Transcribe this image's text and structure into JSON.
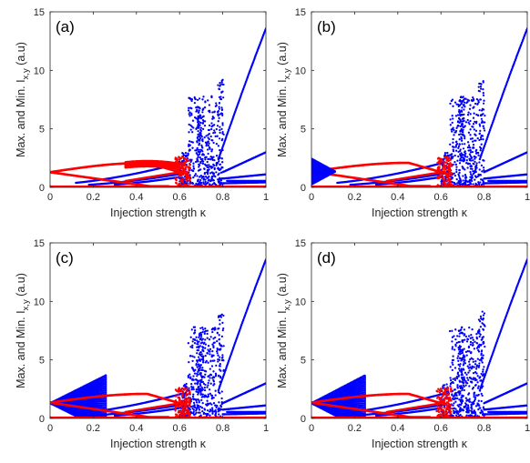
{
  "chart_data": [
    {
      "type": "scatter",
      "panel_label": "(a)",
      "xlabel": "Injection strength κ",
      "ylabel": "Max. and Min. I_{x,y} (a.u)",
      "xlim": [
        0,
        1
      ],
      "ylim": [
        0,
        15
      ],
      "x_ticks": [
        "0",
        "0.2",
        "0.4",
        "0.6",
        "0.8",
        "1"
      ],
      "y_ticks": [
        "0",
        "5",
        "10",
        "15"
      ],
      "grid": false,
      "colors": {
        "x_polarization": "#0000ff",
        "y_polarization": "#ff0000"
      },
      "red_upper_start": 1.3,
      "red_fan_start_x": 1.0,
      "red_fan_end_x": 0.0,
      "red_fan_spread": 0.0
    },
    {
      "type": "scatter",
      "panel_label": "(b)",
      "xlabel": "Injection strength κ",
      "ylabel": "Max. and Min. I_{x,y} (a.u)",
      "xlim": [
        0,
        1
      ],
      "ylim": [
        0,
        15
      ],
      "x_ticks": [
        "0",
        "0.2",
        "0.4",
        "0.6",
        "0.8",
        "1"
      ],
      "y_ticks": [
        "0",
        "5",
        "10",
        "15"
      ],
      "grid": false,
      "colors": {
        "x_polarization": "#0000ff",
        "y_polarization": "#ff0000"
      },
      "red_upper_start": 1.35,
      "red_fan_start_x": 0.0,
      "red_fan_end_x": 0.11,
      "red_fan_spread": 1.1
    },
    {
      "type": "scatter",
      "panel_label": "(c)",
      "xlabel": "Injection strength κ",
      "ylabel": "Max. and Min. I_{x,y} (a.u)",
      "xlim": [
        0,
        1
      ],
      "ylim": [
        0,
        15
      ],
      "x_ticks": [
        "0",
        "0.2",
        "0.4",
        "0.6",
        "0.8",
        "1"
      ],
      "y_ticks": [
        "0",
        "5",
        "10",
        "15"
      ],
      "grid": false,
      "colors": {
        "x_polarization": "#0000ff",
        "y_polarization": "#ff0000"
      },
      "blue_fan_end_x": 0.26,
      "blue_fan_spread": 2.4,
      "red_upper_start": 1.35
    },
    {
      "type": "scatter",
      "panel_label": "(d)",
      "xlabel": "Injection strength κ",
      "ylabel": "Max. and Min. I_{x,y} (a.u)",
      "xlim": [
        0,
        1
      ],
      "ylim": [
        0,
        15
      ],
      "x_ticks": [
        "0",
        "0.2",
        "0.4",
        "0.6",
        "0.8",
        "1"
      ],
      "y_ticks": [
        "0",
        "5",
        "10",
        "15"
      ],
      "grid": false,
      "colors": {
        "x_polarization": "#0000ff",
        "y_polarization": "#ff0000"
      },
      "blue_fan_end_x": 0.25,
      "blue_fan_spread": 2.4,
      "red_upper_start": 1.35
    }
  ]
}
